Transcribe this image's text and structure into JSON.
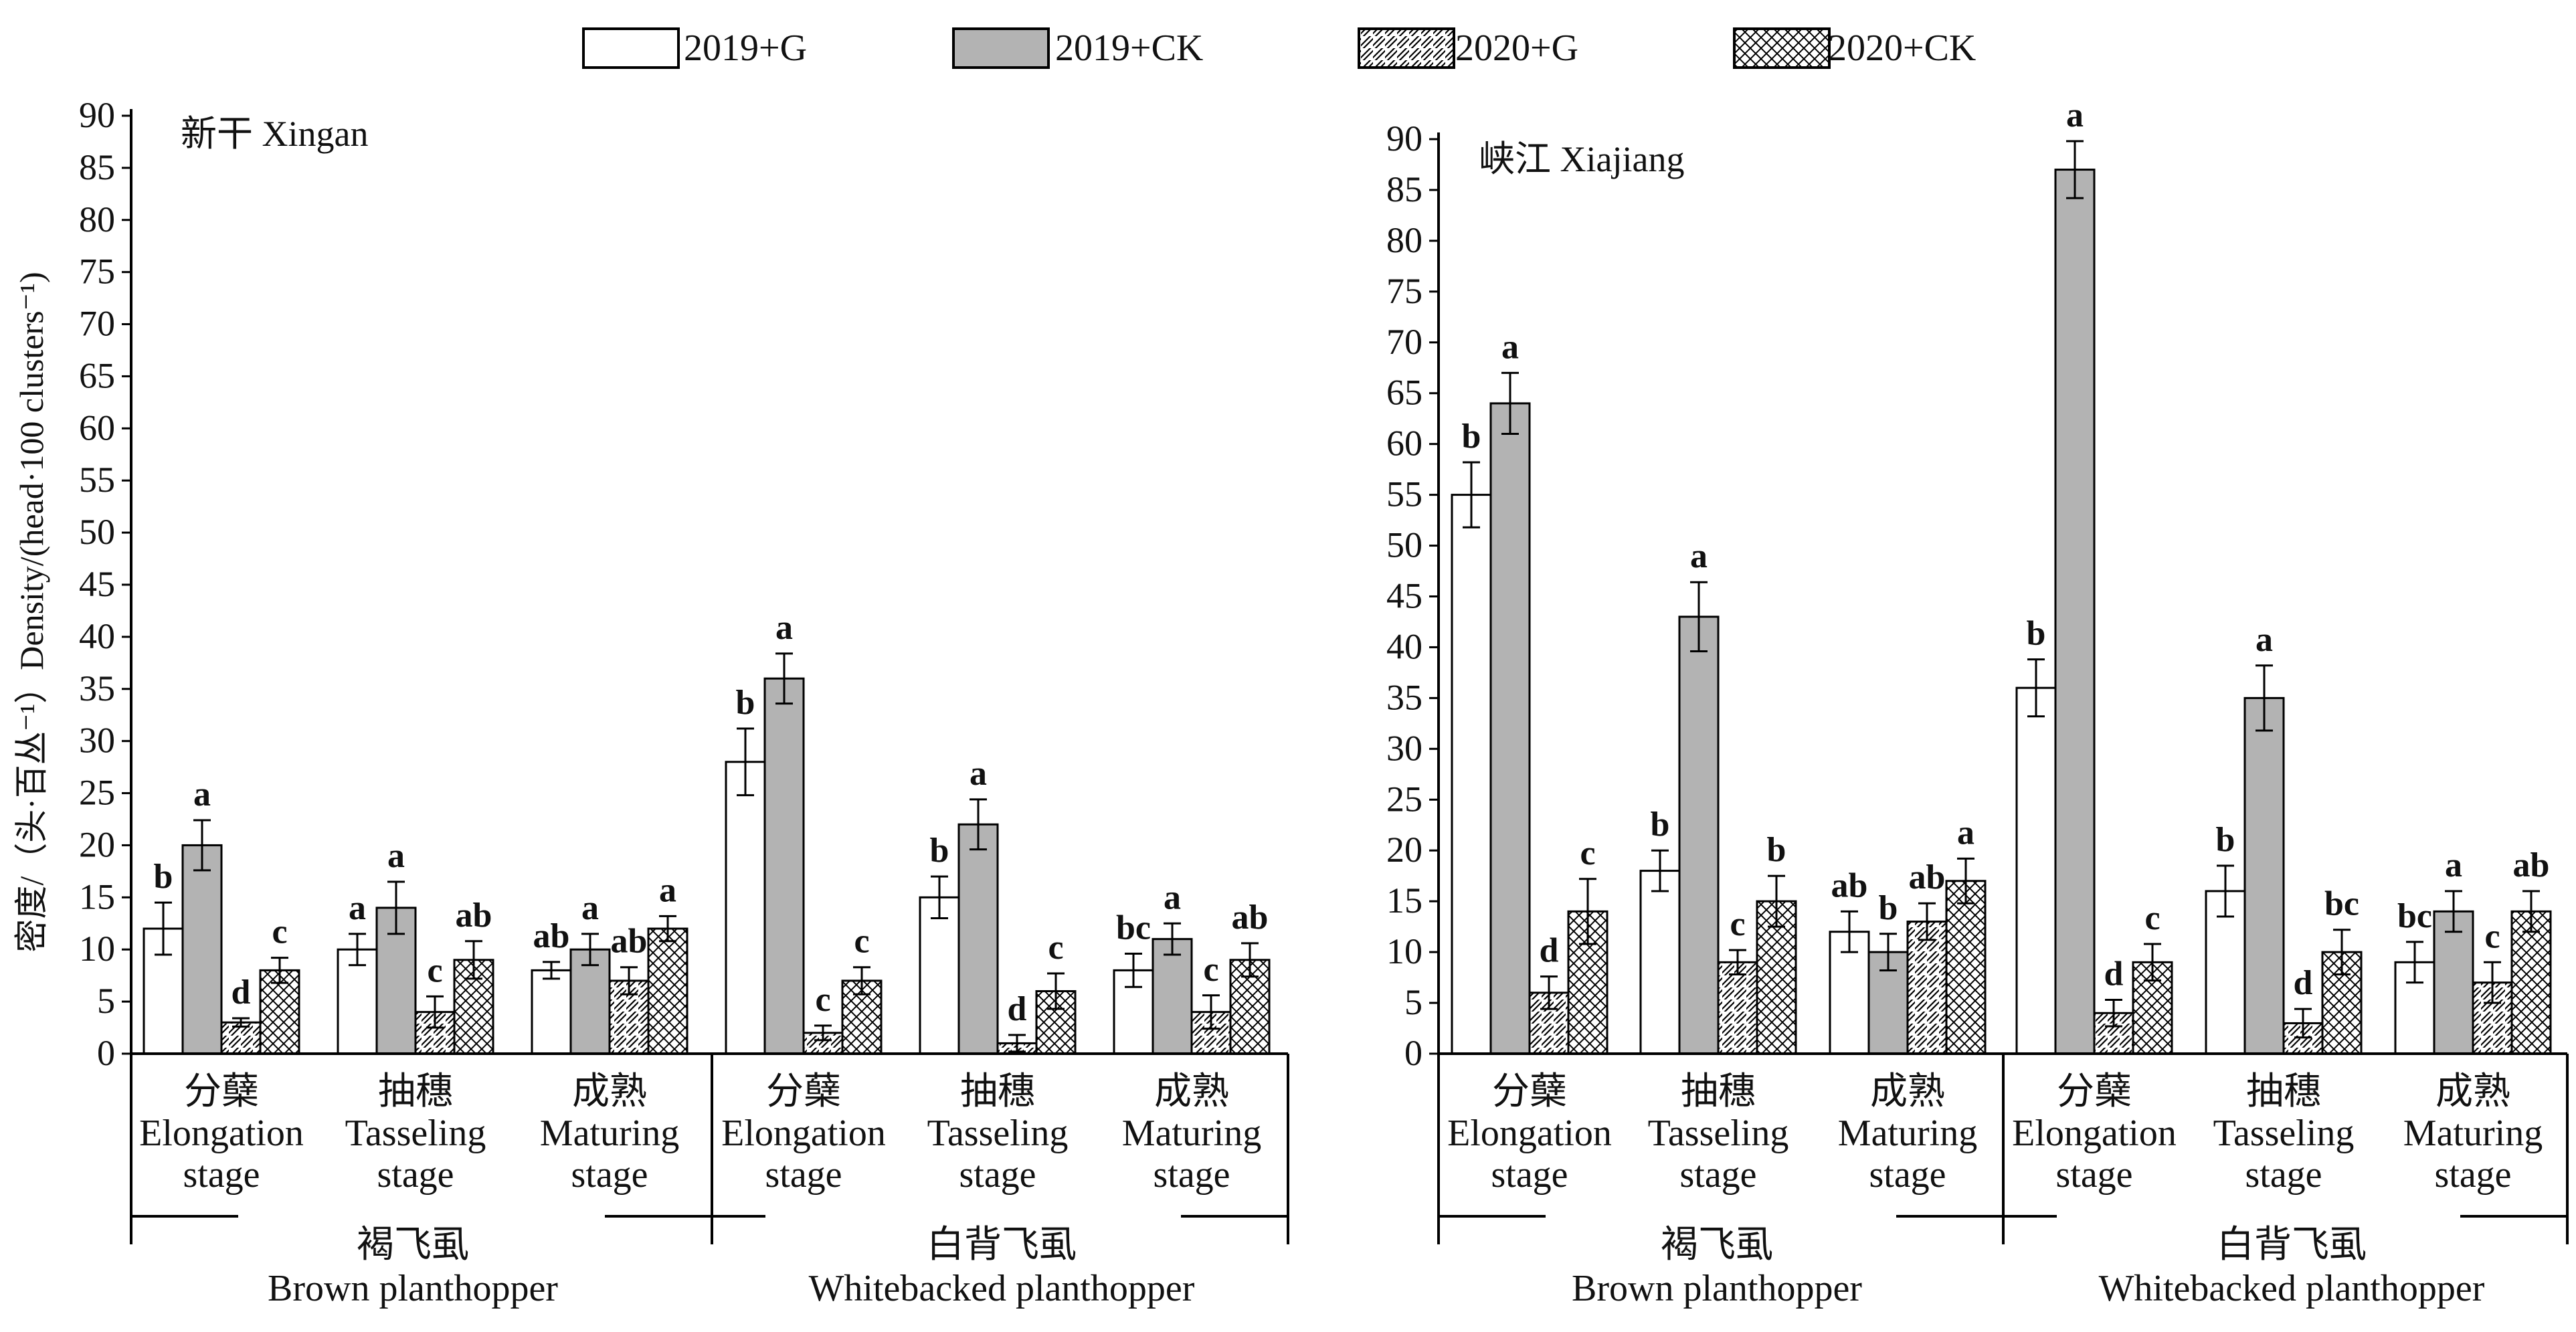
{
  "legend": [
    {
      "name": "2019+G",
      "pattern": "white"
    },
    {
      "name": "2019+CK",
      "pattern": "gray"
    },
    {
      "name": "2020+G",
      "pattern": "hatch"
    },
    {
      "name": "2020+CK",
      "pattern": "cross"
    }
  ],
  "colors": {
    "gray_fill": "#b3b3b3",
    "stroke": "#000000",
    "background": "#ffffff"
  },
  "y_axis_label": "密度/（头·百丛⁻¹）Density/(head·100 clusters⁻¹)",
  "chart_data": [
    {
      "type": "bar",
      "title": "新干  Xingan",
      "ylim": [
        0,
        90
      ],
      "yticks": [
        0,
        5,
        10,
        15,
        20,
        25,
        30,
        35,
        40,
        45,
        50,
        55,
        60,
        65,
        70,
        75,
        80,
        85,
        90
      ],
      "groups": [
        {
          "zh": "褐飞虱",
          "en": "Brown planthopper"
        },
        {
          "zh": "白背飞虱",
          "en": "Whitebacked planthopper"
        }
      ],
      "categories": [
        {
          "zh": "分蘖",
          "en1": "Elongation",
          "en2": "stage"
        },
        {
          "zh": "抽穗",
          "en1": "Tasseling",
          "en2": "stage"
        },
        {
          "zh": "成熟",
          "en1": "Maturing",
          "en2": "stage"
        },
        {
          "zh": "分蘖",
          "en1": "Elongation",
          "en2": "stage"
        },
        {
          "zh": "抽穗",
          "en1": "Tasseling",
          "en2": "stage"
        },
        {
          "zh": "成熟",
          "en1": "Maturing",
          "en2": "stage"
        }
      ],
      "series": [
        {
          "name": "2019+G",
          "values": [
            12,
            10,
            8,
            28,
            15,
            8
          ],
          "errors": [
            2.5,
            1.5,
            0.8,
            3.2,
            2.0,
            1.6
          ],
          "letters": [
            "b",
            "a",
            "ab",
            "b",
            "b",
            "bc"
          ]
        },
        {
          "name": "2019+CK",
          "values": [
            20,
            14,
            10,
            36,
            22,
            11
          ],
          "errors": [
            2.4,
            2.5,
            1.5,
            2.4,
            2.4,
            1.5
          ],
          "letters": [
            "a",
            "a",
            "a",
            "a",
            "a",
            "a"
          ]
        },
        {
          "name": "2020+G",
          "values": [
            3,
            4,
            7,
            2,
            1,
            4
          ],
          "errors": [
            0.4,
            1.5,
            1.3,
            0.7,
            0.8,
            1.6
          ],
          "letters": [
            "d",
            "c",
            "ab",
            "c",
            "d",
            "c"
          ]
        },
        {
          "name": "2020+CK",
          "values": [
            8,
            9,
            12,
            7,
            6,
            9
          ],
          "errors": [
            1.2,
            1.8,
            1.2,
            1.3,
            1.7,
            1.6
          ],
          "letters": [
            "c",
            "ab",
            "a",
            "c",
            "c",
            "ab"
          ]
        }
      ]
    },
    {
      "type": "bar",
      "title": "峡江  Xiajiang",
      "ylim": [
        0,
        90
      ],
      "yticks": [
        0,
        5,
        10,
        15,
        20,
        25,
        30,
        35,
        40,
        45,
        50,
        55,
        60,
        65,
        70,
        75,
        80,
        85,
        90
      ],
      "groups": [
        {
          "zh": "褐飞虱",
          "en": "Brown planthopper"
        },
        {
          "zh": "白背飞虱",
          "en": "Whitebacked planthopper"
        }
      ],
      "categories": [
        {
          "zh": "分蘖",
          "en1": "Elongation",
          "en2": "stage"
        },
        {
          "zh": "抽穗",
          "en1": "Tasseling",
          "en2": "stage"
        },
        {
          "zh": "成熟",
          "en1": "Maturing",
          "en2": "stage"
        },
        {
          "zh": "分蘖",
          "en1": "Elongation",
          "en2": "stage"
        },
        {
          "zh": "抽穗",
          "en1": "Tasseling",
          "en2": "stage"
        },
        {
          "zh": "成熟",
          "en1": "Maturing",
          "en2": "stage"
        }
      ],
      "series": [
        {
          "name": "2019+G",
          "values": [
            55,
            18,
            12,
            36,
            16,
            9
          ],
          "errors": [
            3.2,
            2.0,
            2.0,
            2.8,
            2.5,
            2.0
          ],
          "letters": [
            "b",
            "b",
            "ab",
            "b",
            "b",
            "bc"
          ]
        },
        {
          "name": "2019+CK",
          "values": [
            64,
            43,
            10,
            87,
            35,
            14
          ],
          "errors": [
            3.0,
            3.4,
            1.8,
            2.8,
            3.2,
            2.0
          ],
          "letters": [
            "a",
            "a",
            "b",
            "a",
            "a",
            "a"
          ]
        },
        {
          "name": "2020+G",
          "values": [
            6,
            9,
            13,
            4,
            3,
            7
          ],
          "errors": [
            1.6,
            1.2,
            1.8,
            1.3,
            1.4,
            2.0
          ],
          "letters": [
            "d",
            "c",
            "ab",
            "d",
            "d",
            "c"
          ]
        },
        {
          "name": "2020+CK",
          "values": [
            14,
            15,
            17,
            9,
            10,
            14
          ],
          "errors": [
            3.2,
            2.5,
            2.2,
            1.8,
            2.2,
            2.0
          ],
          "letters": [
            "c",
            "b",
            "a",
            "c",
            "bc",
            "ab"
          ]
        }
      ]
    }
  ]
}
